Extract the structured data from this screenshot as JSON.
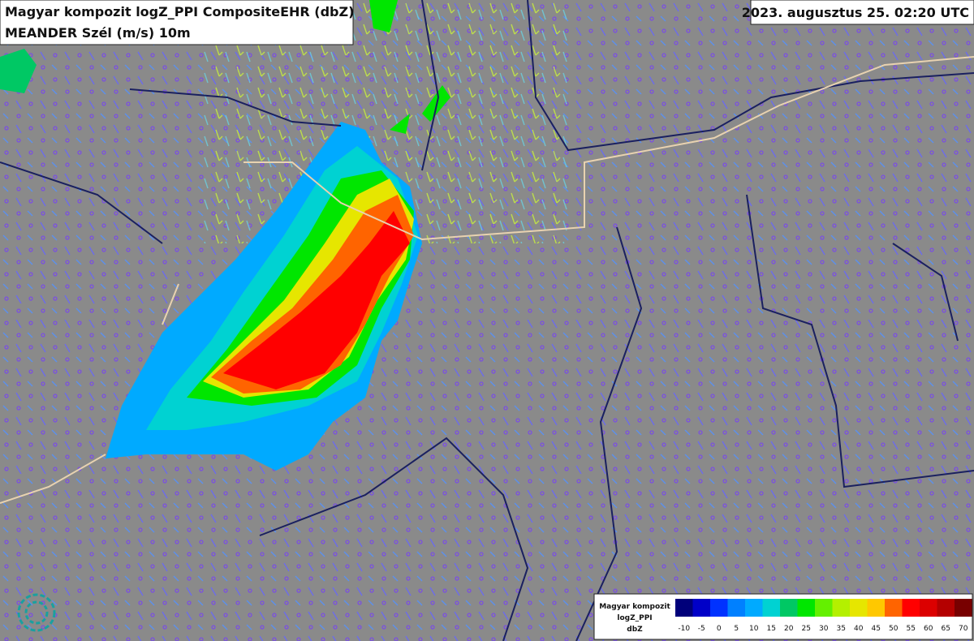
{
  "header": {
    "title": "Magyar kompozit logZ_PPI CompositeEHR (dbZ)",
    "subtitle": "MEANDER Szél (m/s) 10m"
  },
  "timestamp": "2023. augusztus 25. 02:20 UTC",
  "legend": {
    "title": [
      "Magyar kompozit",
      "logZ_PPI",
      "dbZ"
    ],
    "labels": [
      -10,
      -5,
      0,
      5,
      10,
      15,
      20,
      25,
      30,
      35,
      40,
      45,
      50,
      55,
      60,
      65,
      70
    ],
    "colors": [
      "#00007a",
      "#0000c8",
      "#0032ff",
      "#0080ff",
      "#00aaff",
      "#00d2d2",
      "#00c864",
      "#00e600",
      "#64f000",
      "#b4f000",
      "#e6e600",
      "#ffc800",
      "#ff6400",
      "#ff0000",
      "#dc0000",
      "#b40000",
      "#780000"
    ]
  }
}
